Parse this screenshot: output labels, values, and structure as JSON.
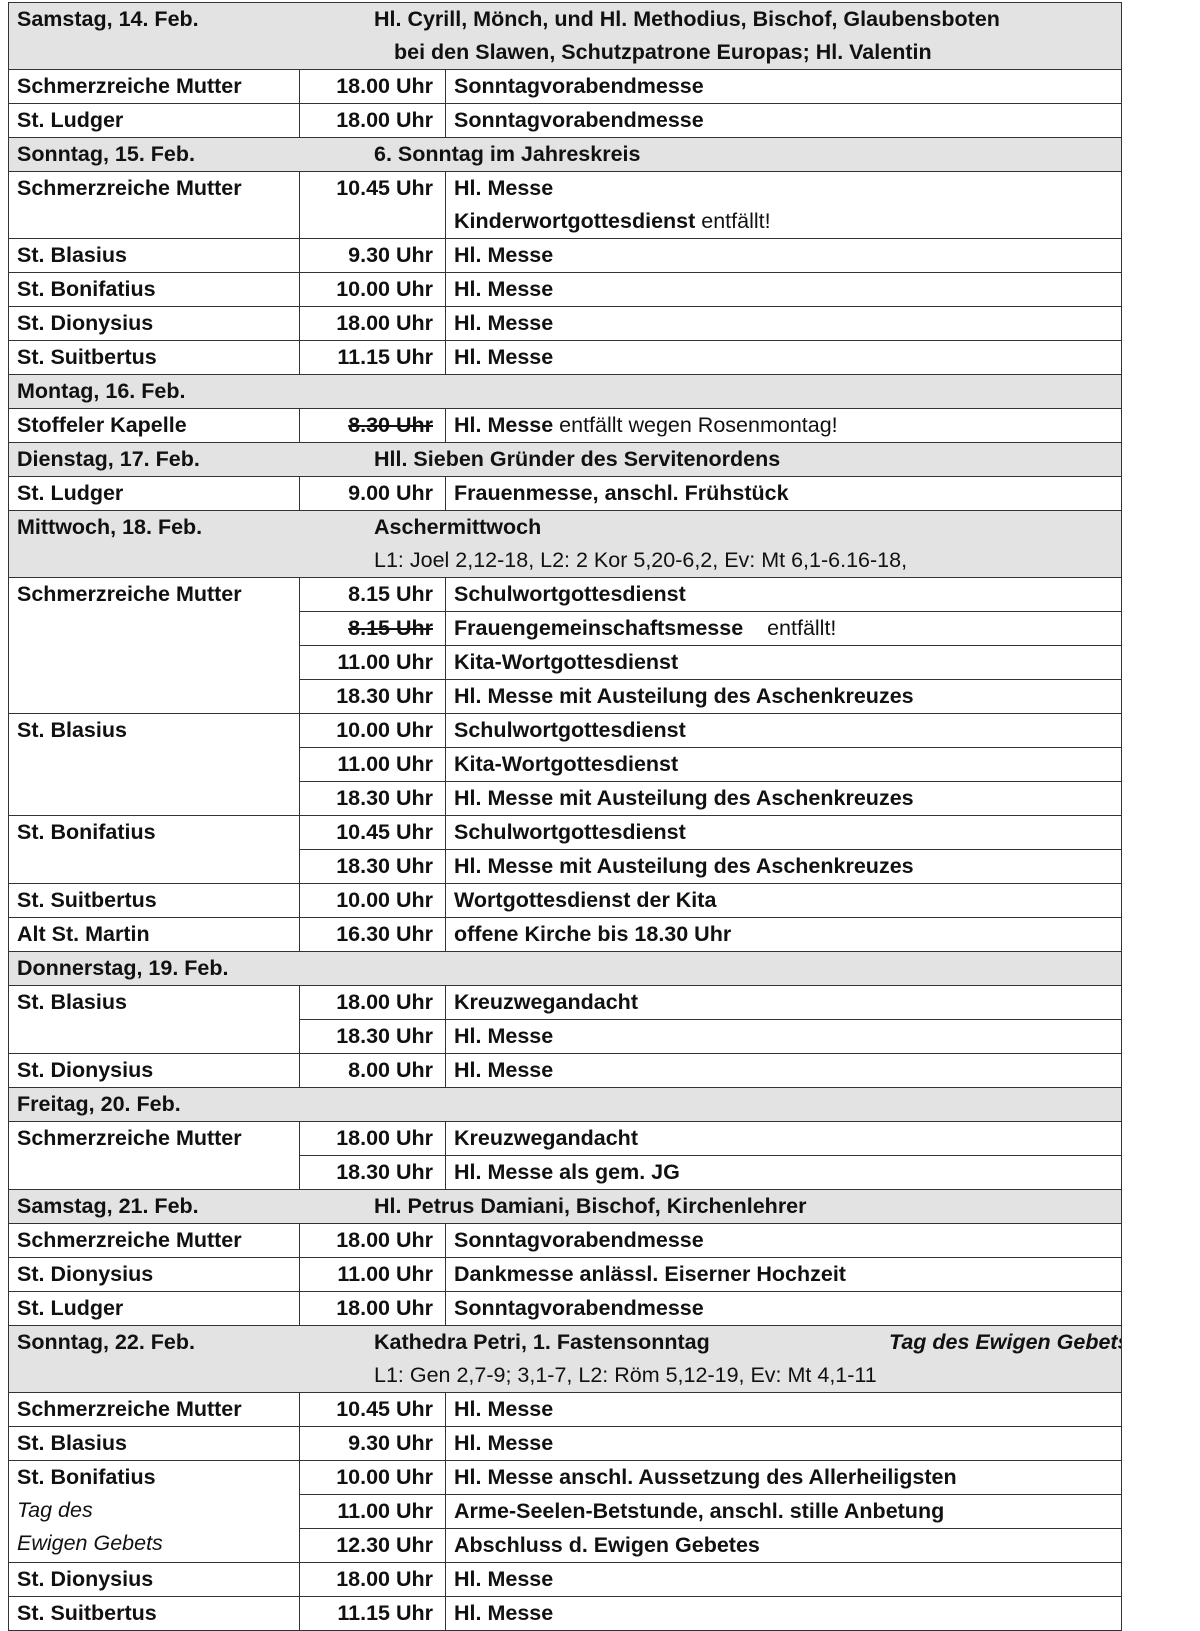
{
  "days": [
    {
      "date": "Samstag, 14. Feb.",
      "title": "Hl. Cyrill, Mönch, und Hl. Methodius, Bischof, Glaubensboten",
      "title2": "bei den Slawen, Schutzpatrone Europas; Hl. Valentin",
      "entries": [
        {
          "church": "Schmerzreiche Mutter",
          "times": [
            {
              "time": "18.00 Uhr",
              "lines": [
                [
                  {
                    "b": "Sonntagvorabendmesse"
                  }
                ]
              ]
            }
          ]
        },
        {
          "church": "St. Ludger",
          "times": [
            {
              "time": "18.00 Uhr",
              "lines": [
                [
                  {
                    "b": "Sonntagvorabendmesse"
                  }
                ]
              ]
            }
          ]
        }
      ]
    },
    {
      "date": "Sonntag, 15. Feb.",
      "title": "6. Sonntag im Jahreskreis",
      "entries": [
        {
          "church": "Schmerzreiche Mutter",
          "times": [
            {
              "time": "10.45 Uhr",
              "lines": [
                [
                  {
                    "b": "Hl. Messe"
                  }
                ],
                [
                  {
                    "b": "Kinderwortgottesdienst"
                  },
                  {
                    "n": " entfällt!"
                  }
                ]
              ]
            }
          ]
        },
        {
          "church": "St. Blasius",
          "times": [
            {
              "time": "9.30 Uhr",
              "lines": [
                [
                  {
                    "b": "Hl. Messe"
                  }
                ]
              ]
            }
          ]
        },
        {
          "church": "St. Bonifatius",
          "times": [
            {
              "time": "10.00 Uhr",
              "lines": [
                [
                  {
                    "b": "Hl. Messe"
                  }
                ]
              ]
            }
          ]
        },
        {
          "church": "St. Dionysius",
          "times": [
            {
              "time": "18.00 Uhr",
              "lines": [
                [
                  {
                    "b": "Hl. Messe"
                  }
                ]
              ]
            }
          ]
        },
        {
          "church": "St. Suitbertus",
          "times": [
            {
              "time": "11.15 Uhr",
              "lines": [
                [
                  {
                    "b": "Hl. Messe"
                  }
                ]
              ]
            }
          ]
        }
      ]
    },
    {
      "date": "Montag, 16. Feb.",
      "entries": [
        {
          "church": "Stoffeler Kapelle",
          "times": [
            {
              "time": "8.30 Uhr",
              "struck": true,
              "lines": [
                [
                  {
                    "b": "Hl. Messe"
                  },
                  {
                    "n": " entfällt wegen Rosenmontag!"
                  }
                ]
              ]
            }
          ]
        }
      ]
    },
    {
      "date": "Dienstag, 17. Feb.",
      "title": "Hll. Sieben Gründer des Servitenordens",
      "entries": [
        {
          "church": "St. Ludger",
          "times": [
            {
              "time": "9.00 Uhr",
              "lines": [
                [
                  {
                    "b": "Frauenmesse, anschl. Frühstück"
                  }
                ]
              ]
            }
          ]
        }
      ]
    },
    {
      "date": "Mittwoch, 18. Feb.",
      "title": "Aschermittwoch",
      "subtitle": "L1: Joel 2,12-18, L2: 2 Kor 5,20-6,2, Ev: Mt 6,1-6.16-18,",
      "entries": [
        {
          "church": "Schmerzreiche Mutter",
          "times": [
            {
              "time": "8.15 Uhr",
              "lines": [
                [
                  {
                    "b": "Schulwortgottesdienst"
                  }
                ]
              ]
            },
            {
              "time": "8.15 Uhr",
              "struck": true,
              "lines": [
                [
                  {
                    "b": "Frauengemeinschaftsmesse"
                  },
                  {
                    "n": "    entfällt!"
                  }
                ]
              ]
            },
            {
              "time": "11.00 Uhr",
              "lines": [
                [
                  {
                    "b": "Kita-Wortgottesdienst"
                  }
                ]
              ]
            },
            {
              "time": "18.30 Uhr",
              "lines": [
                [
                  {
                    "b": "Hl. Messe mit Austeilung des Aschenkreuzes"
                  }
                ]
              ]
            }
          ]
        },
        {
          "church": "St. Blasius",
          "times": [
            {
              "time": "10.00 Uhr",
              "lines": [
                [
                  {
                    "b": "Schulwortgottesdienst"
                  }
                ]
              ]
            },
            {
              "time": "11.00 Uhr",
              "lines": [
                [
                  {
                    "b": "Kita-Wortgottesdienst"
                  }
                ]
              ]
            },
            {
              "time": "18.30 Uhr",
              "lines": [
                [
                  {
                    "b": "Hl. Messe mit Austeilung des Aschenkreuzes"
                  }
                ]
              ]
            }
          ]
        },
        {
          "church": "St. Bonifatius",
          "times": [
            {
              "time": "10.45 Uhr",
              "lines": [
                [
                  {
                    "b": "Schulwortgottesdienst"
                  }
                ]
              ]
            },
            {
              "time": "18.30 Uhr",
              "lines": [
                [
                  {
                    "b": "Hl. Messe mit Austeilung des Aschenkreuzes"
                  }
                ]
              ]
            }
          ]
        },
        {
          "church": "St. Suitbertus",
          "times": [
            {
              "time": "10.00 Uhr",
              "lines": [
                [
                  {
                    "b": "Wortgottesdienst der Kita"
                  }
                ]
              ]
            }
          ]
        },
        {
          "church": "Alt St. Martin",
          "times": [
            {
              "time": "16.30 Uhr",
              "lines": [
                [
                  {
                    "b": "offene Kirche bis 18.30 Uhr"
                  }
                ]
              ]
            }
          ]
        }
      ]
    },
    {
      "date": "Donnerstag, 19. Feb.",
      "entries": [
        {
          "church": "St. Blasius",
          "times": [
            {
              "time": "18.00 Uhr",
              "lines": [
                [
                  {
                    "b": "Kreuzwegandacht"
                  }
                ]
              ]
            },
            {
              "time": "18.30 Uhr",
              "lines": [
                [
                  {
                    "b": "Hl. Messe"
                  }
                ]
              ]
            }
          ]
        },
        {
          "church": "St. Dionysius",
          "times": [
            {
              "time": "8.00 Uhr",
              "lines": [
                [
                  {
                    "b": "Hl. Messe"
                  }
                ]
              ]
            }
          ]
        }
      ]
    },
    {
      "date": "Freitag, 20. Feb.",
      "entries": [
        {
          "church": "Schmerzreiche Mutter",
          "times": [
            {
              "time": "18.00 Uhr",
              "lines": [
                [
                  {
                    "b": "Kreuzwegandacht"
                  }
                ]
              ]
            },
            {
              "time": "18.30 Uhr",
              "lines": [
                [
                  {
                    "b": "Hl. Messe als gem. JG"
                  }
                ]
              ]
            }
          ]
        }
      ]
    },
    {
      "date": "Samstag, 21. Feb.",
      "title": "Hl. Petrus Damiani, Bischof, Kirchenlehrer",
      "entries": [
        {
          "church": "Schmerzreiche Mutter",
          "times": [
            {
              "time": "18.00 Uhr",
              "lines": [
                [
                  {
                    "b": "Sonntagvorabendmesse"
                  }
                ]
              ]
            }
          ]
        },
        {
          "church": "St. Dionysius",
          "times": [
            {
              "time": "11.00 Uhr",
              "lines": [
                [
                  {
                    "b": "Dankmesse anlässl. Eiserner Hochzeit"
                  }
                ]
              ]
            }
          ]
        },
        {
          "church": "St. Ludger",
          "times": [
            {
              "time": "18.00 Uhr",
              "lines": [
                [
                  {
                    "b": "Sonntagvorabendmesse"
                  }
                ]
              ]
            }
          ]
        }
      ]
    },
    {
      "date": "Sonntag, 22. Feb.",
      "title": "Kathedra Petri, 1. Fastensonntag",
      "feast": "Tag des Ewigen Gebets",
      "subtitle": "L1: Gen 2,7-9; 3,1-7, L2: Röm 5,12-19, Ev: Mt 4,1-11",
      "entries": [
        {
          "church": "Schmerzreiche Mutter",
          "times": [
            {
              "time": "10.45 Uhr",
              "lines": [
                [
                  {
                    "b": "Hl. Messe"
                  }
                ]
              ]
            }
          ]
        },
        {
          "church": "St. Blasius",
          "times": [
            {
              "time": "9.30 Uhr",
              "lines": [
                [
                  {
                    "b": "Hl. Messe"
                  }
                ]
              ]
            }
          ]
        },
        {
          "church": "St. Bonifatius",
          "church_note": [
            "Tag des",
            "Ewigen Gebets"
          ],
          "times": [
            {
              "time": "10.00 Uhr",
              "lines": [
                [
                  {
                    "b": "Hl. Messe anschl. Aussetzung des Allerheiligsten"
                  }
                ]
              ]
            },
            {
              "time": "11.00 Uhr",
              "lines": [
                [
                  {
                    "b": "Arme-Seelen-Betstunde, anschl. stille Anbetung"
                  }
                ]
              ]
            },
            {
              "time": "12.30 Uhr",
              "lines": [
                [
                  {
                    "b": "Abschluss d. Ewigen Gebetes"
                  }
                ]
              ]
            }
          ]
        },
        {
          "church": "St. Dionysius",
          "times": [
            {
              "time": "18.00 Uhr",
              "lines": [
                [
                  {
                    "b": "Hl. Messe"
                  }
                ]
              ]
            }
          ]
        },
        {
          "church": "St. Suitbertus",
          "times": [
            {
              "time": "11.15 Uhr",
              "lines": [
                [
                  {
                    "b": "Hl. Messe"
                  }
                ]
              ]
            }
          ]
        }
      ]
    }
  ]
}
